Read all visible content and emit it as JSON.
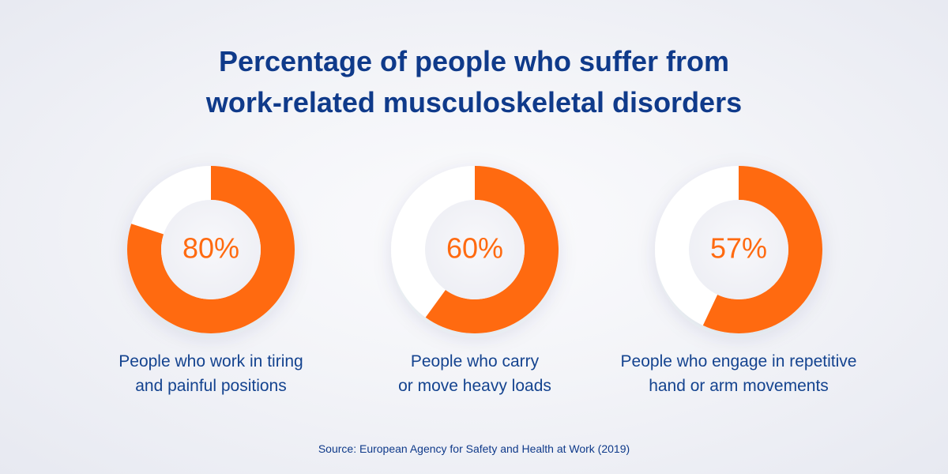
{
  "title_lines": [
    "Percentage of people who suffer from",
    "work-related musculoskeletal disorders"
  ],
  "colors": {
    "title": "#0f3a8a",
    "accent": "#ff6a10",
    "track": "#ffffff",
    "caption": "#14438f"
  },
  "chart_data": {
    "type": "pie",
    "variant": "donut",
    "title": "Percentage of people who suffer from work-related musculoskeletal disorders",
    "items": [
      {
        "value": 80,
        "label": "80%",
        "caption_lines": [
          "People who work in tiring",
          "and painful positions"
        ]
      },
      {
        "value": 60,
        "label": "60%",
        "caption_lines": [
          "People who carry",
          "or move heavy loads"
        ]
      },
      {
        "value": 57,
        "label": "57%",
        "caption_lines": [
          "People who engage in repetitive",
          "hand or arm movements"
        ]
      }
    ]
  },
  "source": "Source: European Agency for Safety and Health at Work (2019)"
}
